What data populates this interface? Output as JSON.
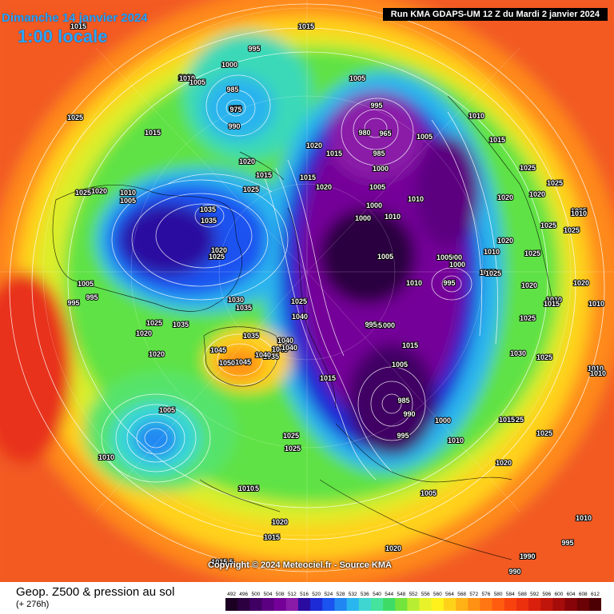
{
  "header": {
    "date_line": "Dimanche 14 janvier 2024",
    "local_time": "1:00 locale",
    "run_info": "Run KMA GDAPS-UM 12 Z du Mardi 2 janvier 2024"
  },
  "copyright": "Copyright © 2024 Meteociel.fr - Source KMA",
  "footer": {
    "product_title": "Geop. Z500 & pression au sol",
    "lead_time": "(+ 276h)"
  },
  "scale": {
    "values": [
      "492",
      "496",
      "500",
      "504",
      "508",
      "512",
      "516",
      "520",
      "524",
      "528",
      "532",
      "536",
      "540",
      "544",
      "548",
      "552",
      "556",
      "560",
      "564",
      "568",
      "572",
      "576",
      "580",
      "584",
      "588",
      "592",
      "596",
      "600",
      "604",
      "608",
      "612"
    ],
    "colors": [
      "#1b0022",
      "#2c0040",
      "#400063",
      "#5b0080",
      "#740099",
      "#8a1aa8",
      "#2a0ba0",
      "#1d2bd6",
      "#1a53f0",
      "#1f86f2",
      "#29b5ee",
      "#3fd6d2",
      "#46e39e",
      "#3edc67",
      "#73e43c",
      "#b7ee33",
      "#e8f22a",
      "#fff21c",
      "#ffd21a",
      "#ffb216",
      "#ff9214",
      "#ff7612",
      "#ff5c10",
      "#f8430f",
      "#ec300e",
      "#d8200c",
      "#bf150b",
      "#a40d0a",
      "#870508",
      "#6a0206",
      "#4d0004"
    ]
  },
  "pressure_labels": [
    {
      "v": "1015"
    },
    {
      "v": "995"
    },
    {
      "v": "1015"
    },
    {
      "v": "1010"
    },
    {
      "v": "1000"
    },
    {
      "v": "985"
    },
    {
      "v": "990"
    },
    {
      "v": "975"
    },
    {
      "v": "1010"
    },
    {
      "v": "1005"
    },
    {
      "v": "1025"
    },
    {
      "v": "1015"
    },
    {
      "v": "1005"
    },
    {
      "v": "995"
    },
    {
      "v": "975"
    },
    {
      "v": "980"
    },
    {
      "v": "965"
    },
    {
      "v": "985"
    },
    {
      "v": "1005"
    },
    {
      "v": "1010"
    },
    {
      "v": "1015"
    },
    {
      "v": "1020"
    },
    {
      "v": "1015"
    },
    {
      "v": "1020"
    },
    {
      "v": "1015"
    },
    {
      "v": "1025"
    },
    {
      "v": "1020"
    },
    {
      "v": "1015"
    },
    {
      "v": "1000"
    },
    {
      "v": "1005"
    },
    {
      "v": "1010"
    },
    {
      "v": "1025"
    },
    {
      "v": "1035"
    },
    {
      "v": "1035"
    },
    {
      "v": "1000"
    },
    {
      "v": "1005"
    },
    {
      "v": "1010"
    },
    {
      "v": "1025"
    },
    {
      "v": "1020"
    },
    {
      "v": "1010"
    },
    {
      "v": "1005"
    },
    {
      "v": "995"
    },
    {
      "v": "1000"
    },
    {
      "v": "1030"
    },
    {
      "v": "1035"
    },
    {
      "v": "1035"
    },
    {
      "v": "1020"
    },
    {
      "v": "1025"
    },
    {
      "v": "1035"
    },
    {
      "v": "1040"
    },
    {
      "v": "1040"
    },
    {
      "v": "1045"
    },
    {
      "v": "1045"
    },
    {
      "v": "1050"
    },
    {
      "v": "1040"
    },
    {
      "v": "1045"
    },
    {
      "v": "1035"
    },
    {
      "v": "1040"
    },
    {
      "v": "1015"
    },
    {
      "v": "1005"
    },
    {
      "v": "1010"
    },
    {
      "v": "1000"
    },
    {
      "v": "1005"
    },
    {
      "v": "1010"
    },
    {
      "v": "1005"
    },
    {
      "v": "995"
    },
    {
      "v": "995"
    },
    {
      "v": "1000"
    },
    {
      "v": "1015"
    },
    {
      "v": "1005"
    },
    {
      "v": "985"
    },
    {
      "v": "990"
    },
    {
      "v": "995"
    },
    {
      "v": "1000"
    },
    {
      "v": "1010"
    },
    {
      "v": "1005"
    },
    {
      "v": "1000"
    },
    {
      "v": "995"
    },
    {
      "v": "1025"
    },
    {
      "v": "1020"
    },
    {
      "v": "1020"
    },
    {
      "v": "1025"
    },
    {
      "v": "1025"
    },
    {
      "v": "1025"
    },
    {
      "v": "1020"
    },
    {
      "v": "1025"
    },
    {
      "v": "1025"
    },
    {
      "v": "1020"
    },
    {
      "v": "1015"
    },
    {
      "v": "1010"
    },
    {
      "v": "1025"
    },
    {
      "v": "1030"
    },
    {
      "v": "1025"
    },
    {
      "v": "1010"
    },
    {
      "v": "1010"
    },
    {
      "v": "1015"
    },
    {
      "v": "1025"
    },
    {
      "v": "1020"
    },
    {
      "v": "1015"
    },
    {
      "v": "1025"
    },
    {
      "v": "1025"
    },
    {
      "v": "1010"
    },
    {
      "v": "1010"
    },
    {
      "v": "1005"
    },
    {
      "v": "990"
    },
    {
      "v": "990"
    },
    {
      "v": "995"
    },
    {
      "v": "1010"
    },
    {
      "v": "1010"
    },
    {
      "v": "1020"
    },
    {
      "v": "1020"
    },
    {
      "v": "1015.5"
    },
    {
      "v": "1020"
    },
    {
      "v": "1015"
    },
    {
      "v": "1015"
    },
    {
      "v": "1010"
    },
    {
      "v": "1005"
    },
    {
      "v": "1010"
    },
    {
      "v": "1025"
    },
    {
      "v": "1025"
    },
    {
      "v": "1020"
    },
    {
      "v": "1020"
    },
    {
      "v": "1025"
    }
  ]
}
